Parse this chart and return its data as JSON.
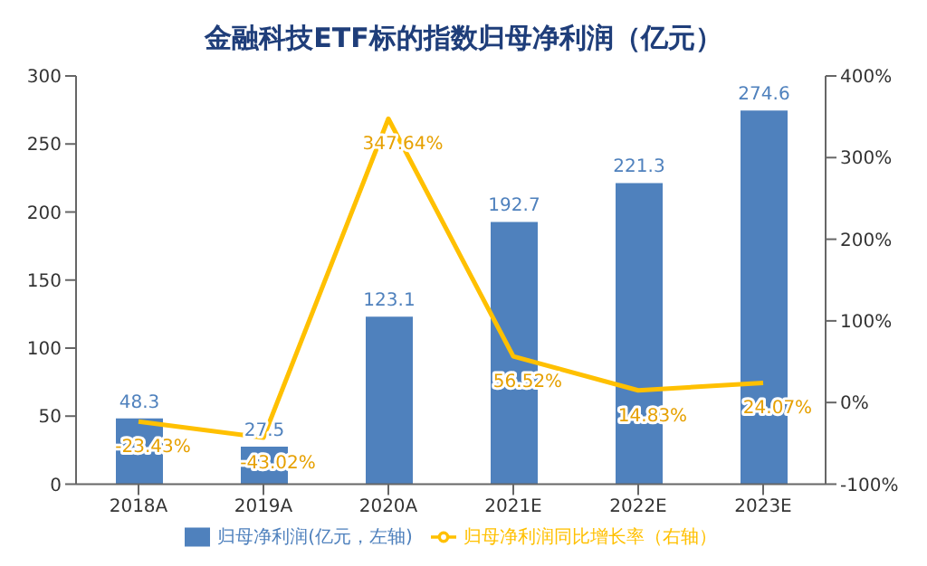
{
  "chart_data": {
    "type": "bar",
    "title": "金融科技ETF标的指数归母净利润（亿元）",
    "categories": [
      "2018A",
      "2019A",
      "2020A",
      "2021E",
      "2022E",
      "2023E"
    ],
    "series": [
      {
        "name": "归母净利润(亿元，左轴)",
        "color": "#4f81bd",
        "values": [
          48.3,
          27.5,
          123.1,
          192.7,
          221.3,
          274.6
        ],
        "value_labels": [
          "48.3",
          "27.5",
          "123.1",
          "192.7",
          "221.3",
          "274.6"
        ]
      },
      {
        "name": "归母净利润同比增长率（右轴）",
        "type": "line",
        "axis": "y2",
        "color": "#ffc000",
        "values": [
          -23.43,
          -43.02,
          347.64,
          56.52,
          14.83,
          24.07
        ],
        "value_labels": [
          "-23.43%",
          "-43.02%",
          "347.64%",
          "56.52%",
          "14.83%",
          "24.07%"
        ]
      }
    ],
    "ylim": [
      0,
      300
    ],
    "yticks": [
      0,
      50,
      100,
      150,
      200,
      250,
      300
    ],
    "y2lim": [
      -100,
      400
    ],
    "y2ticks": [
      {
        "value": -100,
        "label": "-100%"
      },
      {
        "value": 0,
        "label": "0%"
      },
      {
        "value": 100,
        "label": "100%"
      },
      {
        "value": 200,
        "label": "200%"
      },
      {
        "value": 300,
        "label": "300%"
      },
      {
        "value": 400,
        "label": "400%"
      }
    ],
    "grid": false,
    "legend": "bottom",
    "marker": "none",
    "line_style": "solid"
  }
}
